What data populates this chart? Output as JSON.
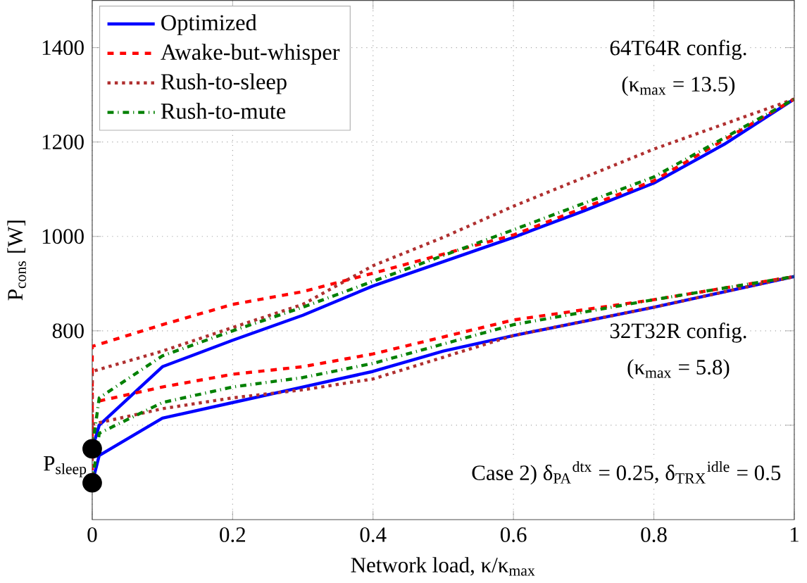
{
  "chart_data": {
    "type": "line",
    "xlabel": "Network load, κ/κ$_{max}$",
    "ylabel": "P$_{cons}$ [W]",
    "xlim": [
      0,
      1
    ],
    "ylim": [
      400,
      1500
    ],
    "xticks": [
      0,
      0.2,
      0.4,
      0.6,
      0.8,
      1
    ],
    "yticks": [
      {
        "value": 600,
        "label": null
      },
      800,
      1000,
      1200,
      1400
    ],
    "grid": true,
    "legend": "top left",
    "annotations": [
      "64T64R config.",
      "(κ$_{max}$ = 13.5)",
      "32T32R config.",
      "(κ$_{max}$ = 5.8)",
      "Case 2) δ$_{PA}$$^{dtx}$ = 0.25, δ$_{TRX}$$^{idle}$ = 0.5",
      {
        "text": "P$_{sleep}$",
        "x": 0,
        "y": 512
      }
    ],
    "series": [
      {
        "name": "Optimized",
        "color": "#0000ff",
        "line_style": "solid",
        "x": [
          0,
          0.01,
          0.1,
          0.2,
          0.3,
          0.4,
          0.6,
          0.7,
          0.8,
          0.9,
          1,
          null,
          0,
          0.01,
          0.1,
          0.2,
          0.3,
          0.4,
          0.5,
          0.6,
          0.8,
          1
        ],
        "values": [
          550,
          600,
          724,
          780,
          833,
          895,
          998,
          1054,
          1113,
          1195,
          1291,
          null,
          478,
          536,
          615,
          648,
          681,
          714,
          757,
          790,
          850,
          915
        ]
      },
      {
        "name": "Awake-but-whisper",
        "color": "#ff0000",
        "line_style": "dashed",
        "x": [
          0,
          0,
          0.1,
          0.2,
          0.3,
          0.4,
          0.6,
          0.8,
          1,
          null,
          0,
          0,
          0.1,
          0.2,
          0.3,
          0.4,
          0.6,
          0.8,
          1
        ],
        "values": [
          550,
          767,
          813,
          856,
          883,
          922,
          1003,
          1118,
          1291,
          null,
          478,
          648,
          681,
          708,
          724,
          751,
          823,
          866,
          915
        ]
      },
      {
        "name": "Rush-to-sleep",
        "color": "#b03030",
        "line_style": "dotted",
        "x": [
          0,
          0,
          0.1,
          0.2,
          0.3,
          0.4,
          0.5,
          0.6,
          0.8,
          1,
          null,
          0,
          0,
          0.1,
          0.2,
          0.3,
          0.4,
          0.6,
          0.8,
          1
        ],
        "values": [
          550,
          714,
          757,
          807,
          856,
          938,
          998,
          1064,
          1185,
          1291,
          null,
          478,
          602,
          635,
          658,
          675,
          698,
          790,
          850,
          915
        ]
      },
      {
        "name": "Rush-to-mute",
        "color": "#008000",
        "line_style": "dashdot",
        "x": [
          0,
          0.01,
          0.1,
          0.2,
          0.3,
          0.4,
          0.6,
          0.8,
          1,
          null,
          0,
          0.01,
          0.1,
          0.2,
          0.3,
          0.4,
          0.6,
          0.8,
          1
        ],
        "values": [
          550,
          658,
          747,
          800,
          850,
          905,
          1014,
          1126,
          1291,
          null,
          478,
          583,
          648,
          681,
          701,
          731,
          813,
          866,
          915
        ]
      },
      {
        "type": "scatter",
        "color": "#000000",
        "marker": "circle",
        "x": [
          0,
          0
        ],
        "values": [
          550,
          478
        ]
      }
    ]
  }
}
